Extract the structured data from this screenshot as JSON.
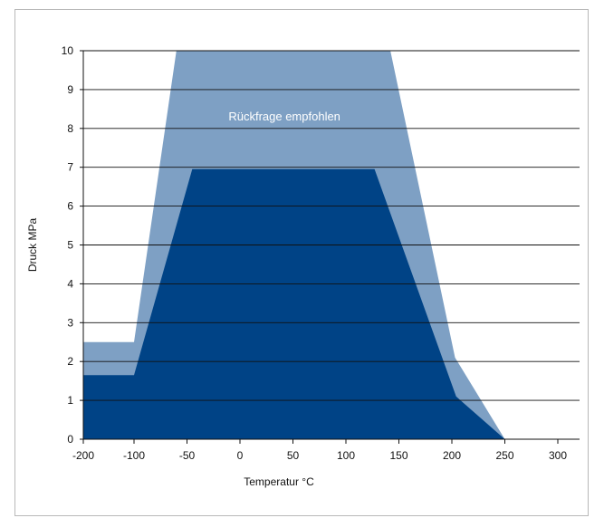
{
  "chart_data": {
    "type": "area",
    "title": "",
    "xlabel": "Temperatur °C",
    "ylabel": "Druck MPa",
    "xlim": [
      -200,
      300
    ],
    "ylim": [
      0,
      10
    ],
    "x_ticks": [
      -200,
      -100,
      -50,
      0,
      50,
      100,
      150,
      200,
      250,
      300
    ],
    "y_ticks": [
      0,
      1,
      2,
      3,
      4,
      5,
      6,
      7,
      8,
      9,
      10
    ],
    "grid": "horizontal",
    "colors": {
      "outer": "#7ea0c4",
      "inner": "#004386",
      "grid": "#111111",
      "background": "#ffffff"
    },
    "annotations": [
      {
        "text": "Rückfrage empfohlen",
        "x": 42,
        "y": 8.3
      }
    ],
    "series": [
      {
        "x": [
          -200,
          -100,
          -60,
          142,
          203,
          250
        ],
        "y": [
          2.5,
          2.5,
          10,
          10,
          2.1,
          0
        ]
      },
      {
        "x": [
          -200,
          -100,
          -45,
          127,
          204,
          250
        ],
        "y": [
          1.65,
          1.65,
          6.95,
          6.95,
          1.1,
          0
        ]
      }
    ]
  }
}
